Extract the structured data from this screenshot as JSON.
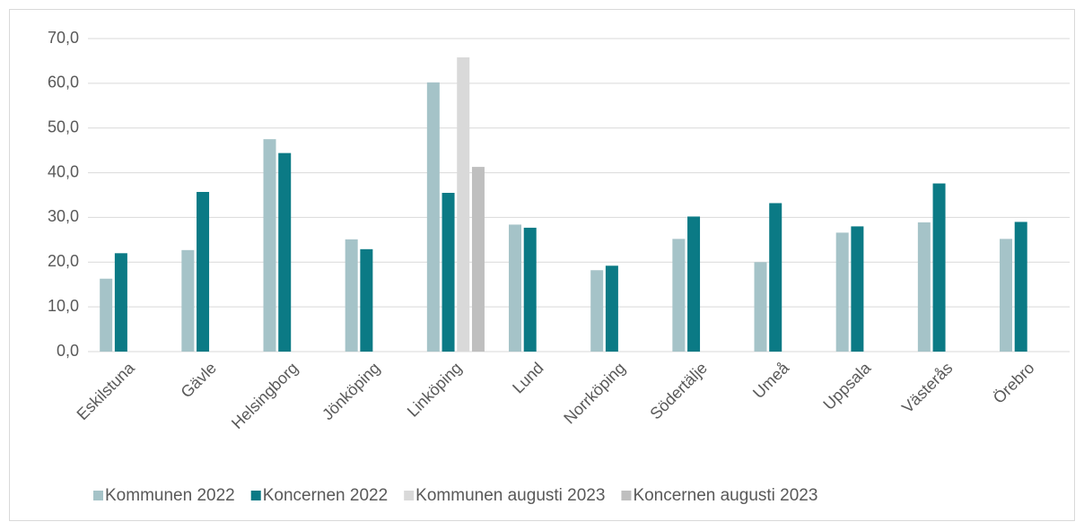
{
  "chart_data": {
    "type": "bar",
    "categories": [
      "Eskilstuna",
      "Gävle",
      "Helsingborg",
      "Jönköping",
      "Linköping",
      "Lund",
      "Norrköping",
      "Södertälje",
      "Umeå",
      "Uppsala",
      "Västerås",
      "Örebro"
    ],
    "series": [
      {
        "name": "Kommunen 2022",
        "color": "#a5c3c8",
        "values": [
          16.3,
          22.7,
          47.5,
          25.1,
          60.2,
          28.4,
          18.2,
          25.2,
          20.0,
          26.6,
          28.9,
          25.2
        ]
      },
      {
        "name": "Koncernen 2022",
        "color": "#0b7a85",
        "values": [
          22.0,
          35.7,
          44.4,
          22.9,
          35.5,
          27.7,
          19.2,
          30.2,
          33.2,
          28.0,
          37.6,
          29.0
        ]
      },
      {
        "name": "Kommunen augusti 2023",
        "color": "#d9d9d9",
        "values": [
          null,
          null,
          null,
          null,
          65.8,
          null,
          null,
          null,
          null,
          null,
          null,
          null
        ]
      },
      {
        "name": "Koncernen augusti 2023",
        "color": "#bfbfbf",
        "values": [
          null,
          null,
          null,
          null,
          41.3,
          null,
          null,
          null,
          null,
          null,
          null,
          null
        ]
      }
    ],
    "ylim": [
      0,
      70
    ],
    "yticks": [
      {
        "value": 0,
        "label": "0,0"
      },
      {
        "value": 10,
        "label": "10,0"
      },
      {
        "value": 20,
        "label": "20,0"
      },
      {
        "value": 30,
        "label": "30,0"
      },
      {
        "value": 40,
        "label": "40,0"
      },
      {
        "value": 50,
        "label": "50,0"
      },
      {
        "value": 60,
        "label": "60,0"
      },
      {
        "value": 70,
        "label": "70,0"
      }
    ],
    "grid": true,
    "legend": "bottom"
  }
}
